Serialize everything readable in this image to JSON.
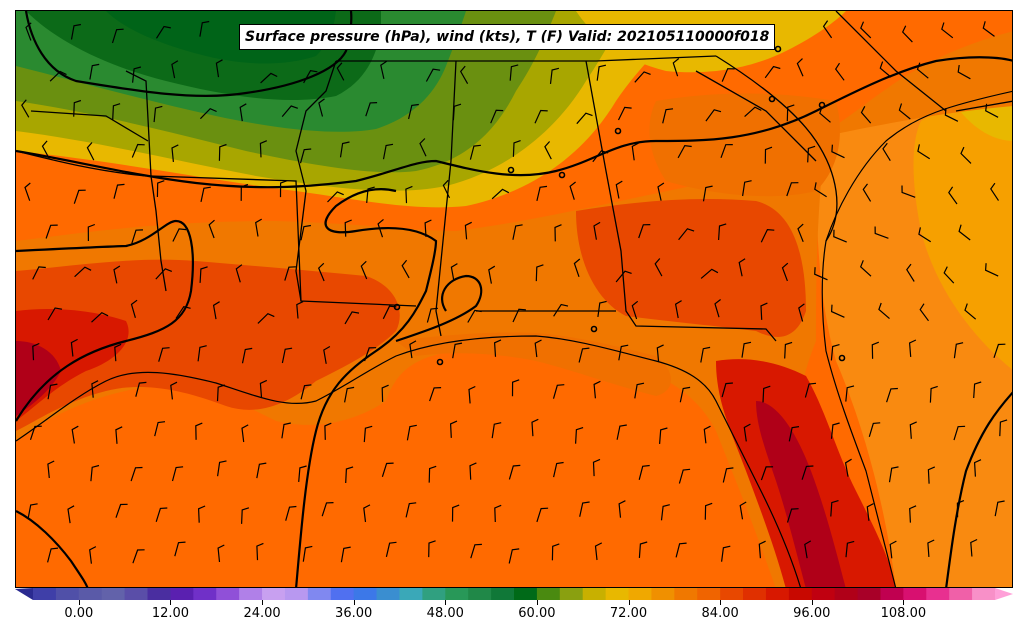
{
  "title": "Surface pressure (hPa), wind (kts), T (F) Valid: 202105110000f018",
  "colorbar": {
    "min": -6,
    "max": 120,
    "interval": 3,
    "tick_labels": [
      "0.00",
      "12.00",
      "24.00",
      "36.00",
      "48.00",
      "60.00",
      "72.00",
      "84.00",
      "96.00",
      "108.00"
    ],
    "tick_values": [
      0,
      12,
      24,
      36,
      48,
      60,
      72,
      84,
      96,
      108
    ],
    "colors": [
      "#3f3fa8",
      "#5050a8",
      "#5a5aa8",
      "#6262aa",
      "#5a4ea8",
      "#4a2ea0",
      "#5a20b0",
      "#7030c8",
      "#9050d8",
      "#b080e8",
      "#c8a0f0",
      "#b898f0",
      "#8088f0",
      "#5070f0",
      "#3c78e8",
      "#3a8ed0",
      "#3aa8b8",
      "#30a080",
      "#289858",
      "#208848",
      "#107838",
      "#006a18",
      "#4a8a10",
      "#8aa010",
      "#c8b000",
      "#e8b800",
      "#f0a800",
      "#f09000",
      "#f07800",
      "#f06400",
      "#e84800",
      "#e03000",
      "#d81800",
      "#c80800",
      "#c00010",
      "#b00018",
      "#a80028",
      "#c00050",
      "#d81070",
      "#e83090",
      "#f060a8",
      "#f890c8"
    ]
  },
  "legend_colors": {
    "ocean_temp": "#ff6a00",
    "warm_land": "#e84800",
    "hot": "#c00c00",
    "cool_green": "#0c6a18",
    "mid_green": "#7a9a10",
    "olive": "#a8a600",
    "yellow": "#e8b800",
    "amber": "#f6a000",
    "isobar": "#000000",
    "title_bg": "#ffffff"
  }
}
